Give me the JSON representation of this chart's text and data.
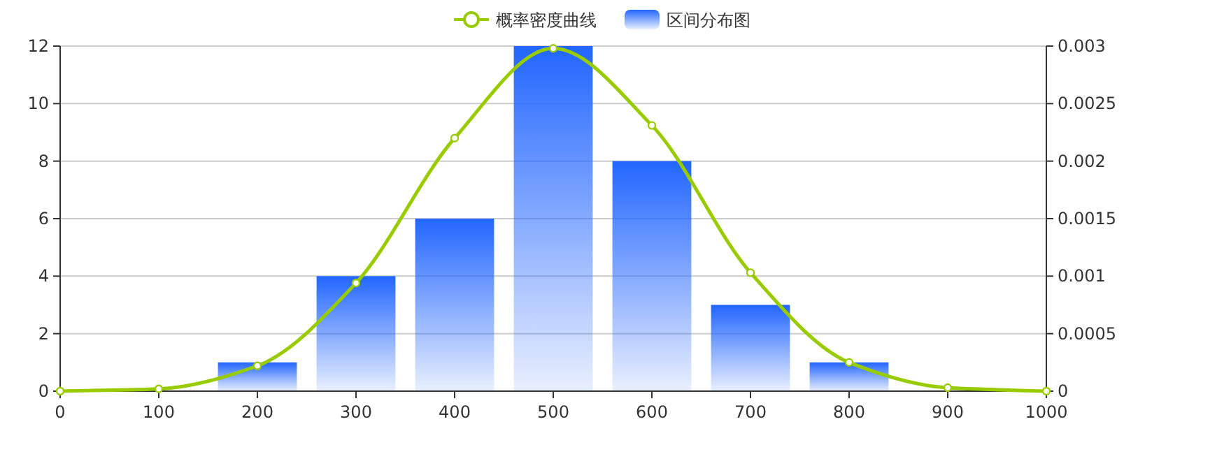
{
  "chart_data": {
    "type": "bar",
    "xlim": [
      0,
      1000
    ],
    "xticks": [
      0,
      100,
      200,
      300,
      400,
      500,
      600,
      700,
      800,
      900,
      1000
    ],
    "ylim": [
      0,
      12
    ],
    "yticks": [
      0,
      2,
      4,
      6,
      8,
      10,
      12
    ],
    "y2lim": [
      0,
      0.003
    ],
    "y2ticks": [
      0,
      0.0005,
      0.001,
      0.0015,
      0.002,
      0.0025,
      0.003
    ],
    "grid": "y",
    "legend": "top",
    "series": [
      {
        "name": "概率密度曲线",
        "type": "line",
        "axis": "y2",
        "color": "#99cc00",
        "marker": "circle",
        "x": [
          0,
          100,
          200,
          300,
          400,
          500,
          600,
          700,
          800,
          900,
          1000
        ],
        "values": [
          0,
          2e-05,
          0.00022,
          0.00094,
          0.0022,
          0.00298,
          0.00231,
          0.00103,
          0.00025,
          3e-05,
          0
        ]
      },
      {
        "name": "区间分布图",
        "color": "#2266ff",
        "x": [
          200,
          300,
          400,
          500,
          600,
          700,
          800
        ],
        "values": [
          1,
          4,
          6,
          12,
          8,
          3,
          1
        ]
      }
    ]
  }
}
